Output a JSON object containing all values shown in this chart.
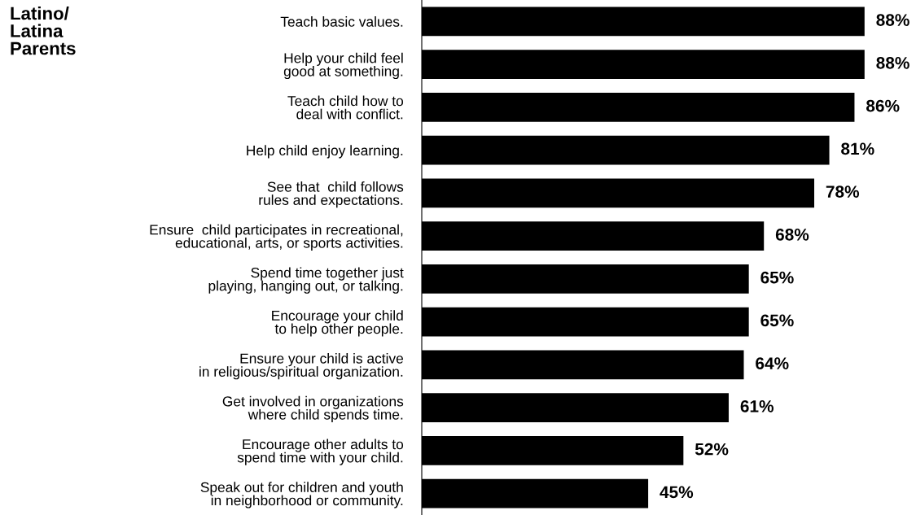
{
  "chart_data": {
    "type": "bar",
    "orientation": "horizontal",
    "title": "Latino/\nLatina\nParents",
    "categories": [
      "Teach basic values.",
      "Help your child feel\ngood at something.",
      "Teach child how to\ndeal with conflict.",
      "Help child enjoy learning.",
      "See that  child follows\nrules and expectations.",
      "Ensure  child participates in recreational,\neducational, arts, or sports activities.",
      "Spend time together just\nplaying, hanging out, or talking.",
      "Encourage your child\nto help other people.",
      "Ensure your child is active\nin religious/spiritual organization.",
      "Get involved in organizations\nwhere child spends time.",
      "Encourage other adults to\nspend time with your child.",
      "Speak out for children and youth\nin neighborhood or community."
    ],
    "values": [
      88,
      88,
      86,
      81,
      78,
      68,
      65,
      65,
      64,
      61,
      52,
      45
    ],
    "value_labels": [
      "88%",
      "88%",
      "86%",
      "81%",
      "78%",
      "68%",
      "65%",
      "65%",
      "64%",
      "61%",
      "52%",
      "45%"
    ],
    "color": "#000000",
    "tick_labels": "y",
    "grid": false,
    "legend": false
  }
}
